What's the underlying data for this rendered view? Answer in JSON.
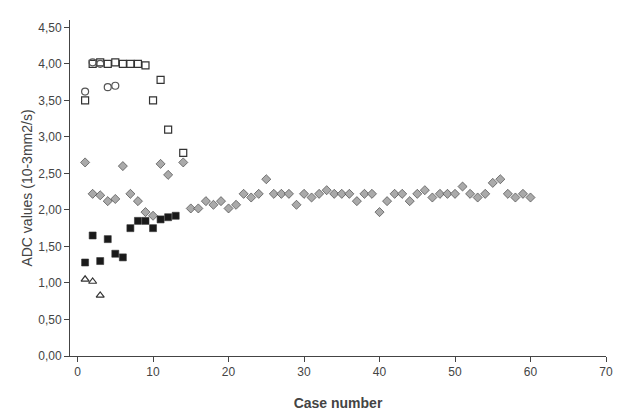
{
  "chart_data": {
    "type": "scatter",
    "xlabel": "Case number",
    "ylabel": "ADC values (10-3mm2/s)",
    "xlim": [
      -1,
      70
    ],
    "ylim": [
      0.0,
      4.6
    ],
    "xticks": [
      0,
      10,
      20,
      30,
      40,
      50,
      60,
      70
    ],
    "yticks": [
      {
        "value": 0.0,
        "label": "0,00"
      },
      {
        "value": 0.5,
        "label": "0,50"
      },
      {
        "value": 1.0,
        "label": "1,00"
      },
      {
        "value": 1.5,
        "label": "1,50"
      },
      {
        "value": 2.0,
        "label": "2,00"
      },
      {
        "value": 2.5,
        "label": "2,50"
      },
      {
        "value": 3.0,
        "label": "3,00"
      },
      {
        "value": 3.5,
        "label": "3,50"
      },
      {
        "value": 4.0,
        "label": "4,00"
      },
      {
        "value": 4.5,
        "label": "4,50"
      }
    ],
    "grid": false,
    "series": [
      {
        "marker": "diamond",
        "color": "#aaaaaa",
        "x": [
          1,
          2,
          3,
          4,
          5,
          6,
          7,
          8,
          9,
          10,
          11,
          12,
          14,
          15,
          16,
          17,
          18,
          19,
          20,
          21,
          22,
          23,
          24,
          25,
          26,
          27,
          28,
          29,
          30,
          31,
          32,
          33,
          34,
          35,
          36,
          37,
          38,
          39,
          40,
          41,
          42,
          43,
          44,
          45,
          46,
          47,
          48,
          49,
          50,
          51,
          52,
          53,
          54,
          55,
          56,
          57,
          58,
          59,
          60
        ],
        "values": [
          2.65,
          2.22,
          2.2,
          2.12,
          2.15,
          2.6,
          2.22,
          2.12,
          1.97,
          1.92,
          2.63,
          2.48,
          2.65,
          2.02,
          2.02,
          2.12,
          2.07,
          2.12,
          2.02,
          2.07,
          2.22,
          2.17,
          2.22,
          2.42,
          2.22,
          2.22,
          2.22,
          2.07,
          2.22,
          2.17,
          2.22,
          2.27,
          2.22,
          2.22,
          2.22,
          2.12,
          2.22,
          2.22,
          1.97,
          2.12,
          2.22,
          2.22,
          2.12,
          2.22,
          2.27,
          2.17,
          2.22,
          2.22,
          2.22,
          2.32,
          2.22,
          2.17,
          2.22,
          2.37,
          2.42,
          2.22,
          2.17,
          2.22,
          2.17
        ]
      },
      {
        "marker": "square-open",
        "color": "#333333",
        "x": [
          1,
          2,
          3,
          4,
          5,
          6,
          7,
          8,
          9,
          10,
          11,
          12,
          14
        ],
        "values": [
          3.5,
          4.0,
          4.02,
          4.0,
          4.02,
          4.0,
          4.0,
          4.0,
          3.98,
          3.5,
          3.78,
          3.1,
          2.78
        ]
      },
      {
        "marker": "circle-open",
        "color": "#555555",
        "x": [
          1,
          2,
          3,
          4,
          5
        ],
        "values": [
          3.62,
          4.02,
          4.0,
          3.68,
          3.7
        ]
      },
      {
        "marker": "triangle-up-open",
        "color": "#333333",
        "x": [
          1,
          2,
          3
        ],
        "values": [
          1.05,
          1.02,
          0.83
        ]
      },
      {
        "marker": "square",
        "color": "#1a1a1a",
        "x": [
          1,
          2,
          3,
          4,
          5,
          6,
          7,
          8,
          9,
          10,
          11,
          12,
          13
        ],
        "values": [
          1.28,
          1.65,
          1.3,
          1.6,
          1.4,
          1.35,
          1.75,
          1.85,
          1.85,
          1.75,
          1.87,
          1.9,
          1.92
        ]
      }
    ]
  }
}
